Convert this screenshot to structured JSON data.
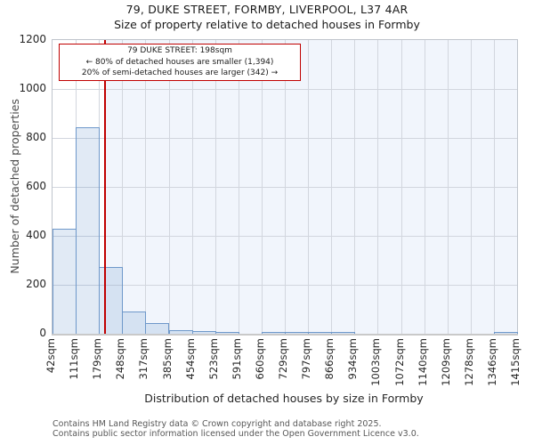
{
  "header": {
    "title": "79, DUKE STREET, FORMBY, LIVERPOOL, L37 4AR",
    "subtitle": "Size of property relative to detached houses in Formby"
  },
  "annotation": {
    "line1": "79 DUKE STREET: 198sqm",
    "line2": "← 80% of detached houses are smaller (1,394)",
    "line3": "20% of semi-detached houses are larger (342) →"
  },
  "chart_data": {
    "type": "bar",
    "title": "Size of property relative to detached houses in Formby",
    "xlabel": "Distribution of detached houses by size in Formby",
    "ylabel": "Number of detached properties",
    "ylim": [
      0,
      1200
    ],
    "yticks": [
      0,
      200,
      400,
      600,
      800,
      1000,
      1200
    ],
    "grid": true,
    "legend": "none",
    "bin_edges_sqm": [
      42,
      111,
      179,
      248,
      317,
      385,
      454,
      523,
      591,
      660,
      729,
      797,
      866,
      934,
      1003,
      1072,
      1140,
      1209,
      1278,
      1346,
      1415
    ],
    "categories": [
      "42sqm",
      "111sqm",
      "179sqm",
      "248sqm",
      "317sqm",
      "385sqm",
      "454sqm",
      "523sqm",
      "591sqm",
      "660sqm",
      "729sqm",
      "797sqm",
      "866sqm",
      "934sqm",
      "1003sqm",
      "1072sqm",
      "1140sqm",
      "1209sqm",
      "1278sqm",
      "1346sqm",
      "1415sqm"
    ],
    "values": [
      430,
      845,
      272,
      92,
      43,
      14,
      11,
      4,
      0,
      2,
      2,
      2,
      2,
      0,
      0,
      0,
      0,
      0,
      0,
      4
    ],
    "marker": {
      "value_sqm": 198,
      "label": "79 DUKE STREET: 198sqm",
      "color": "#c00000"
    },
    "colors": {
      "bar_fill": "rgba(107,150,204,0.20)",
      "bar_edge": "#6e98ca",
      "marker_line": "#c00000",
      "shade_right_of_marker": "#f1f5fc",
      "gridline": "#d2d6de"
    }
  },
  "footer": {
    "line1": "Contains HM Land Registry data © Crown copyright and database right 2025.",
    "line2": "Contains public sector information licensed under the Open Government Licence v3.0."
  }
}
